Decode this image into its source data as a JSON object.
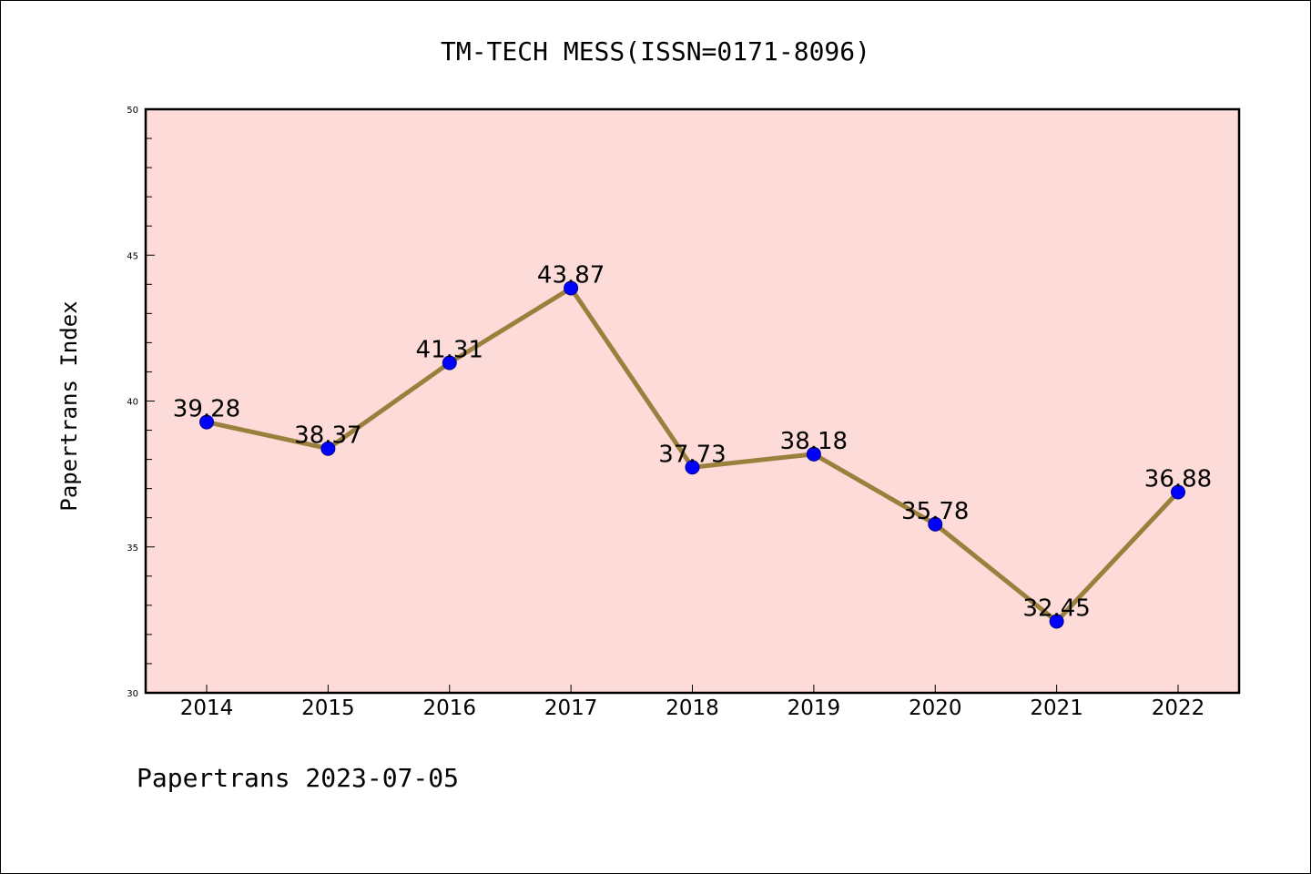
{
  "chart_data": {
    "type": "line",
    "title": "TM-TECH MESS(ISSN=0171-8096)",
    "ylabel": "Papertrans Index",
    "xlabel": "",
    "footer": "Papertrans 2023-07-05",
    "categories": [
      "2014",
      "2015",
      "2016",
      "2017",
      "2018",
      "2019",
      "2020",
      "2021",
      "2022"
    ],
    "values": [
      39.28,
      38.37,
      41.31,
      43.87,
      37.73,
      38.18,
      35.78,
      32.45,
      36.88
    ],
    "value_labels": [
      "39.28",
      "38.37",
      "41.31",
      "43.87",
      "37.73",
      "38.18",
      "35.78",
      "32.45",
      "36.88"
    ],
    "ylim": [
      30,
      50
    ],
    "yticks": [
      "30",
      "35",
      "40",
      "45",
      "50"
    ],
    "grid": false,
    "colors": {
      "plot_background": "#fddbd8",
      "line": "#9a7f3d",
      "marker": "#0000ff"
    }
  }
}
